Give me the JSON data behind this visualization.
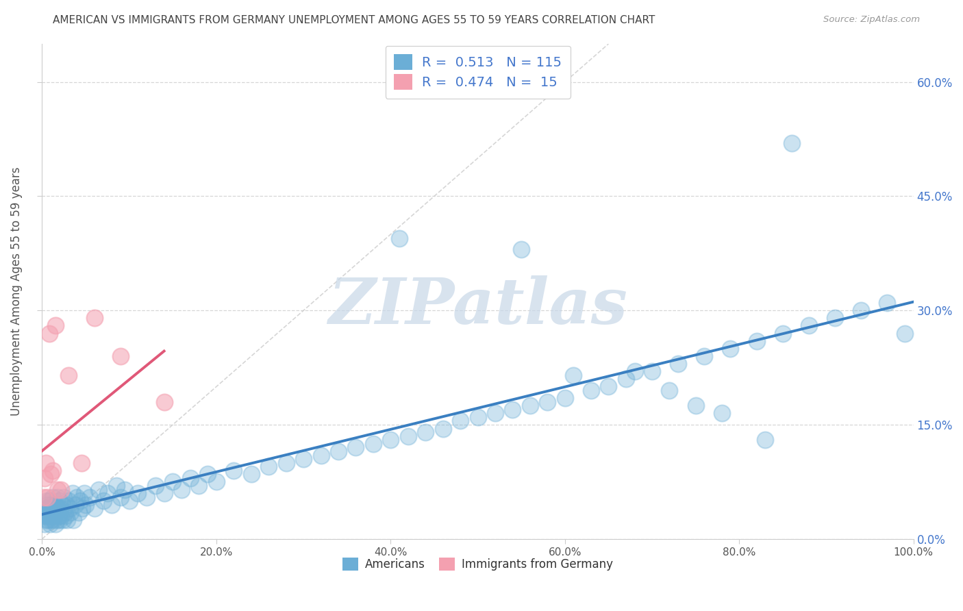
{
  "title": "AMERICAN VS IMMIGRANTS FROM GERMANY UNEMPLOYMENT AMONG AGES 55 TO 59 YEARS CORRELATION CHART",
  "source": "Source: ZipAtlas.com",
  "ylabel": "Unemployment Among Ages 55 to 59 years",
  "watermark": "ZIPatlas",
  "xlim": [
    0,
    1.0
  ],
  "ylim": [
    0,
    0.65
  ],
  "xtick_vals": [
    0.0,
    0.2,
    0.4,
    0.6,
    0.8,
    1.0
  ],
  "xtick_labels": [
    "0.0%",
    "20.0%",
    "40.0%",
    "60.0%",
    "80.0%",
    "100.0%"
  ],
  "ytick_vals": [
    0.0,
    0.15,
    0.3,
    0.45,
    0.6
  ],
  "right_ytick_labels": [
    "0.0%",
    "15.0%",
    "30.0%",
    "45.0%",
    "60.0%"
  ],
  "americans_color": "#6baed6",
  "immigrants_color": "#f4a0b0",
  "americans_R": 0.513,
  "americans_N": 115,
  "immigrants_R": 0.474,
  "immigrants_N": 15,
  "legend_items": [
    "Americans",
    "Immigrants from Germany"
  ],
  "background_color": "#ffffff",
  "grid_color": "#cccccc",
  "title_color": "#444444",
  "axis_label_color": "#555555",
  "tick_color": "#555555",
  "legend_text_color": "#4477cc",
  "watermark_color": "#c8d8e8",
  "line_am_color": "#3a7fc1",
  "line_im_color": "#e05878",
  "diag_color": "#cccccc",
  "right_tick_color": "#4477cc",
  "americans_x": [
    0.002,
    0.003,
    0.004,
    0.004,
    0.005,
    0.005,
    0.006,
    0.006,
    0.007,
    0.007,
    0.008,
    0.008,
    0.009,
    0.009,
    0.01,
    0.01,
    0.011,
    0.012,
    0.012,
    0.013,
    0.013,
    0.014,
    0.015,
    0.015,
    0.016,
    0.017,
    0.018,
    0.018,
    0.019,
    0.02,
    0.02,
    0.021,
    0.022,
    0.023,
    0.024,
    0.025,
    0.026,
    0.027,
    0.028,
    0.029,
    0.03,
    0.032,
    0.033,
    0.035,
    0.036,
    0.038,
    0.04,
    0.042,
    0.044,
    0.046,
    0.048,
    0.05,
    0.055,
    0.06,
    0.065,
    0.07,
    0.075,
    0.08,
    0.085,
    0.09,
    0.095,
    0.1,
    0.11,
    0.12,
    0.13,
    0.14,
    0.15,
    0.16,
    0.17,
    0.18,
    0.19,
    0.2,
    0.22,
    0.24,
    0.26,
    0.28,
    0.3,
    0.32,
    0.34,
    0.36,
    0.38,
    0.4,
    0.42,
    0.44,
    0.46,
    0.48,
    0.5,
    0.52,
    0.54,
    0.56,
    0.58,
    0.6,
    0.63,
    0.65,
    0.67,
    0.7,
    0.73,
    0.76,
    0.79,
    0.82,
    0.85,
    0.88,
    0.91,
    0.94,
    0.97,
    0.99,
    0.41,
    0.55,
    0.61,
    0.68,
    0.72,
    0.75,
    0.78,
    0.83,
    0.86
  ],
  "americans_y": [
    0.03,
    0.02,
    0.04,
    0.025,
    0.03,
    0.05,
    0.035,
    0.045,
    0.025,
    0.04,
    0.03,
    0.05,
    0.02,
    0.04,
    0.025,
    0.045,
    0.03,
    0.035,
    0.055,
    0.025,
    0.04,
    0.03,
    0.02,
    0.045,
    0.035,
    0.025,
    0.04,
    0.055,
    0.03,
    0.025,
    0.05,
    0.04,
    0.03,
    0.045,
    0.025,
    0.055,
    0.035,
    0.03,
    0.045,
    0.025,
    0.05,
    0.04,
    0.035,
    0.06,
    0.025,
    0.045,
    0.055,
    0.035,
    0.05,
    0.04,
    0.06,
    0.045,
    0.055,
    0.04,
    0.065,
    0.05,
    0.06,
    0.045,
    0.07,
    0.055,
    0.065,
    0.05,
    0.06,
    0.055,
    0.07,
    0.06,
    0.075,
    0.065,
    0.08,
    0.07,
    0.085,
    0.075,
    0.09,
    0.085,
    0.095,
    0.1,
    0.105,
    0.11,
    0.115,
    0.12,
    0.125,
    0.13,
    0.135,
    0.14,
    0.145,
    0.155,
    0.16,
    0.165,
    0.17,
    0.175,
    0.18,
    0.185,
    0.195,
    0.2,
    0.21,
    0.22,
    0.23,
    0.24,
    0.25,
    0.26,
    0.27,
    0.28,
    0.29,
    0.3,
    0.31,
    0.27,
    0.395,
    0.38,
    0.215,
    0.22,
    0.195,
    0.175,
    0.165,
    0.13,
    0.52
  ],
  "immigrants_x": [
    0.002,
    0.003,
    0.004,
    0.006,
    0.008,
    0.01,
    0.012,
    0.015,
    0.018,
    0.022,
    0.03,
    0.045,
    0.06,
    0.09,
    0.14
  ],
  "immigrants_y": [
    0.055,
    0.08,
    0.1,
    0.055,
    0.27,
    0.085,
    0.09,
    0.28,
    0.065,
    0.065,
    0.215,
    0.1,
    0.29,
    0.24,
    0.18
  ]
}
